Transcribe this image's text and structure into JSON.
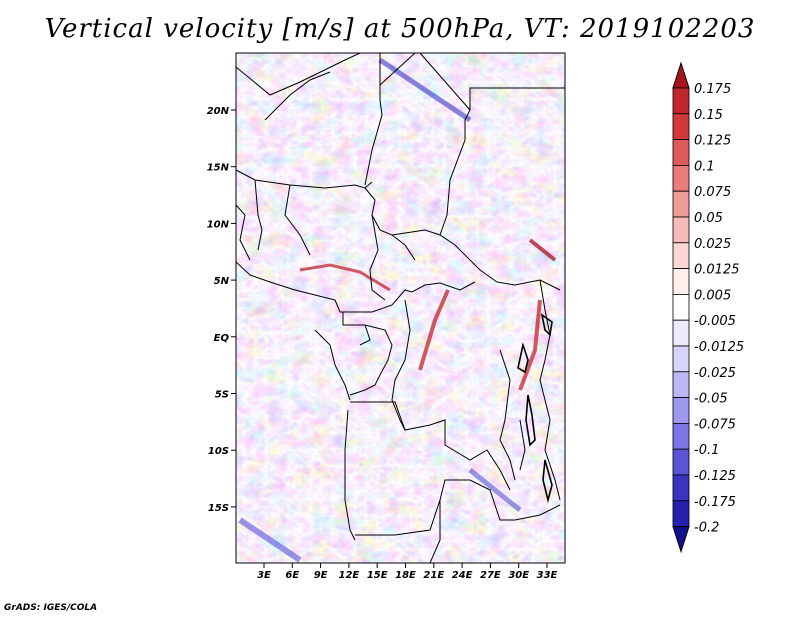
{
  "title": "Vertical velocity [m/s] at 500hPa, VT: 2019102203",
  "credit": "GrADS: IGES/COLA",
  "map": {
    "lon_labels": [
      "3E",
      "6E",
      "9E",
      "12E",
      "15E",
      "18E",
      "21E",
      "24E",
      "27E",
      "30E",
      "33E"
    ],
    "lat_labels": [
      "20N",
      "15N",
      "10N",
      "5N",
      "EQ",
      "5S",
      "10S",
      "15S"
    ]
  },
  "colorbar": {
    "labels": [
      "0.175",
      "0.15",
      "0.125",
      "0.1",
      "0.075",
      "0.05",
      "0.025",
      "0.0125",
      "0.005",
      "-0.005",
      "-0.0125",
      "-0.025",
      "-0.05",
      "-0.075",
      "-0.1",
      "-0.125",
      "-0.175",
      "-0.2"
    ],
    "colors": [
      "#a8141e",
      "#c0262c",
      "#d23a3a",
      "#e05a58",
      "#ea7c78",
      "#f29c98",
      "#f8bcb8",
      "#fcd8d4",
      "#fff0ee",
      "#ffffff",
      "#ecebfc",
      "#d6d4fb",
      "#bcb8f6",
      "#9e98f0",
      "#7d76e6",
      "#5a54d6",
      "#3a34c4",
      "#2420b0",
      "#12108f"
    ]
  },
  "colors": {
    "up_motion": "#c0262c",
    "down_motion": "#3a34c4"
  }
}
